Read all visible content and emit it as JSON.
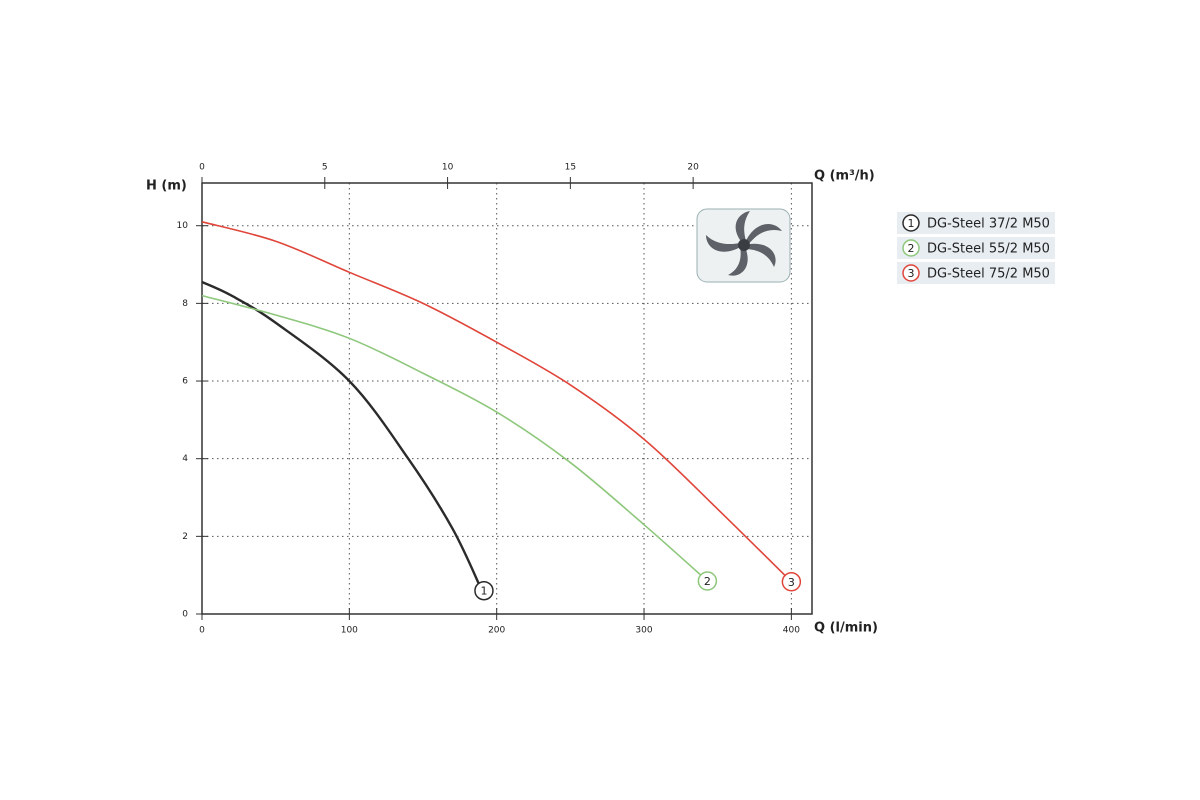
{
  "chart_data": {
    "type": "line",
    "y_label": "H (m)",
    "x_label": "Q (l/min)",
    "x2_label": "Q (m³/h)",
    "xlim": [
      0,
      414
    ],
    "xticks": [
      0,
      100,
      200,
      300,
      400
    ],
    "x2lim": [
      0,
      24.84
    ],
    "x2ticks": [
      0,
      5,
      10,
      15,
      20
    ],
    "ylim": [
      0,
      11.1
    ],
    "yticks": [
      0,
      2,
      4,
      6,
      8,
      10
    ],
    "grid": true,
    "series": [
      {
        "name": "DG-Steel 37/2 M50",
        "label": "1",
        "color": "#2b2b2b",
        "x": [
          0,
          20,
          50,
          100,
          140,
          170,
          190
        ],
        "values": [
          8.55,
          8.2,
          7.5,
          6.0,
          4.0,
          2.2,
          0.6
        ]
      },
      {
        "name": "DG-Steel 55/2 M50",
        "label": "2",
        "color": "#8dc77b",
        "x": [
          0,
          50,
          100,
          150,
          200,
          250,
          300,
          343
        ],
        "values": [
          8.2,
          7.7,
          7.1,
          6.2,
          5.2,
          3.9,
          2.3,
          0.85
        ]
      },
      {
        "name": "DG-Steel 75/2 M50",
        "label": "3",
        "color": "#e0453a",
        "x": [
          0,
          50,
          100,
          150,
          200,
          250,
          300,
          350,
          400
        ],
        "values": [
          10.1,
          9.6,
          8.8,
          8.0,
          7.0,
          5.9,
          4.5,
          2.7,
          0.83
        ]
      }
    ]
  }
}
